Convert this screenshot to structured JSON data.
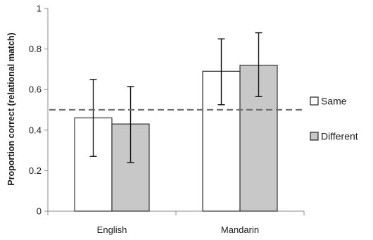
{
  "chart_data": {
    "type": "bar",
    "title": "",
    "xlabel": "",
    "ylabel": "Proportion correct (relational match)",
    "categories": [
      "English",
      "Mandarin"
    ],
    "ylim": [
      0,
      1
    ],
    "yticks": [
      "0",
      "0.2",
      "0.4",
      "0.6",
      "0.8",
      "1"
    ],
    "series": [
      {
        "name": "Same",
        "color": "#ffffff",
        "values": [
          0.46,
          0.69
        ],
        "error_low": [
          0.27,
          0.525
        ],
        "error_high": [
          0.65,
          0.85
        ]
      },
      {
        "name": "Different",
        "color": "#c8c8c8",
        "values": [
          0.43,
          0.72
        ],
        "error_low": [
          0.24,
          0.565
        ],
        "error_high": [
          0.615,
          0.88
        ]
      }
    ],
    "reference_line": {
      "value": 0.5,
      "style": "dashed",
      "color": "#6e6e6e"
    },
    "legend_position": "right",
    "grid": false
  }
}
